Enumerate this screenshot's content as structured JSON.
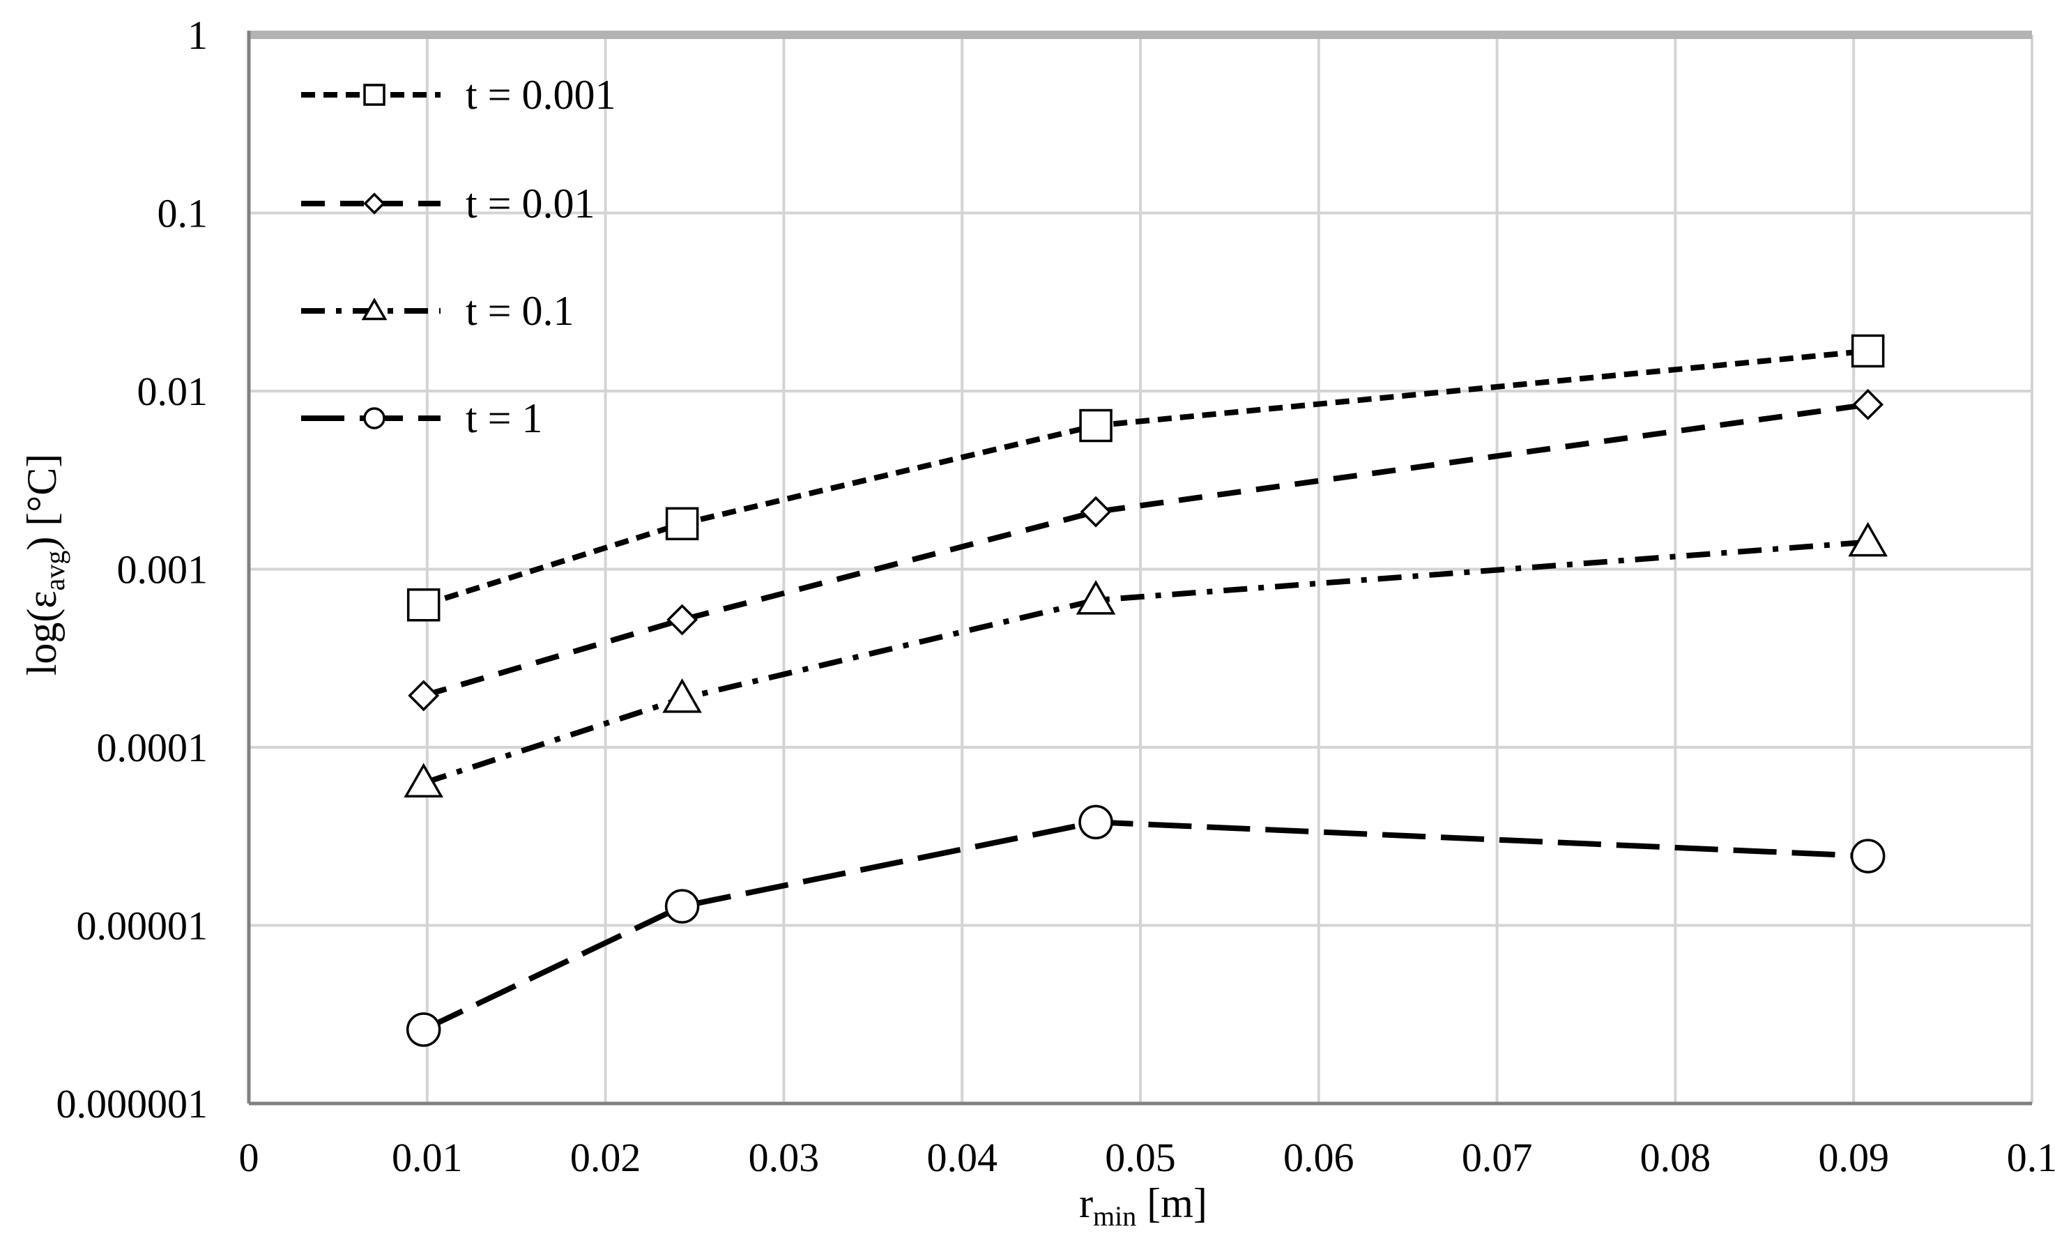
{
  "chart_data": {
    "type": "line",
    "xlabel": {
      "main": "r",
      "sub": "min",
      "unit": " [m]"
    },
    "ylabel": {
      "pre": "log(ε",
      "sub": "avg",
      "post": ")  [°C]"
    },
    "xlim": [
      0,
      0.1
    ],
    "ylim": [
      1e-06,
      1
    ],
    "yscale": "log",
    "grid": true,
    "legend_position": "top-left",
    "x_ticks": [
      "0",
      "0.01",
      "0.02",
      "0.03",
      "0.04",
      "0.05",
      "0.06",
      "0.07",
      "0.08",
      "0.09",
      "0.1"
    ],
    "y_ticks": [
      "0.000001",
      "0.00001",
      "0.0001",
      "0.001",
      "0.01",
      "0.1",
      "1"
    ],
    "series": [
      {
        "name": "t = 0.001",
        "marker": "square",
        "dash": "short-dash",
        "x": [
          0.0098,
          0.0243,
          0.0475,
          0.0908
        ],
        "y": [
          0.00063,
          0.0018,
          0.0064,
          0.0168
        ]
      },
      {
        "name": "t = 0.01",
        "marker": "diamond",
        "dash": "dash",
        "x": [
          0.0098,
          0.0243,
          0.0475,
          0.0908
        ],
        "y": [
          0.000195,
          0.00052,
          0.0021,
          0.0084
        ]
      },
      {
        "name": "t = 0.1",
        "marker": "triangle",
        "dash": "dash-dot",
        "x": [
          0.0098,
          0.0243,
          0.0475,
          0.0908
        ],
        "y": [
          6.3e-05,
          0.000188,
          0.00067,
          0.00142
        ]
      },
      {
        "name": "t = 1",
        "marker": "circle",
        "dash": "long-dash",
        "x": [
          0.0098,
          0.0243,
          0.0475,
          0.0908
        ],
        "y": [
          2.6e-06,
          1.28e-05,
          3.8e-05,
          2.45e-05
        ]
      }
    ]
  }
}
